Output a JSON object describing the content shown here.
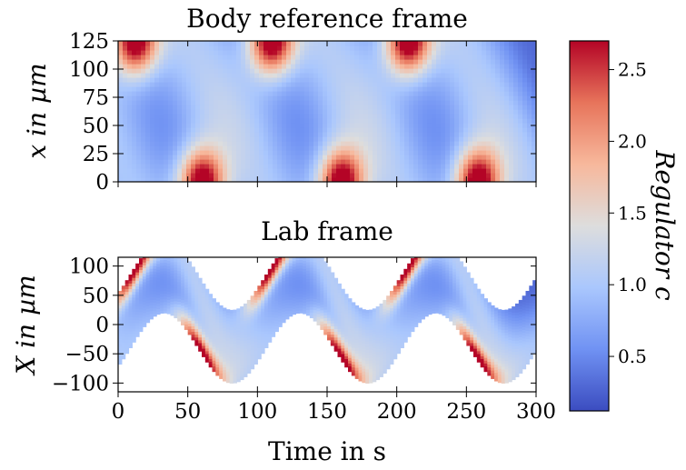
{
  "chart_data": [
    {
      "type": "heatmap",
      "title": "Body reference frame",
      "ylabel": "x in µm",
      "xlabel": "",
      "xlim": [
        0,
        300
      ],
      "ylim": [
        0,
        125
      ],
      "xticks": [
        0,
        50,
        100,
        150,
        200,
        250,
        300
      ],
      "yticks": [
        0,
        25,
        50,
        75,
        100,
        125
      ],
      "period_s": 97.5,
      "peaks": [
        {
          "t": 12,
          "x": 125,
          "c": 2.7
        },
        {
          "t": 60,
          "x": 0,
          "c": 2.7
        },
        {
          "t": 110,
          "x": 125,
          "c": 2.7
        },
        {
          "t": 160,
          "x": 0,
          "c": 2.7
        },
        {
          "t": 208,
          "x": 125,
          "c": 2.7
        },
        {
          "t": 258,
          "x": 0,
          "c": 2.7
        }
      ]
    },
    {
      "type": "heatmap",
      "title": "Lab frame",
      "ylabel": "X in µm",
      "xlabel": "Time in s",
      "xlim": [
        0,
        300
      ],
      "ylim": [
        -115,
        115
      ],
      "xticks": [
        0,
        50,
        100,
        150,
        200,
        250,
        300
      ],
      "xticklabels": [
        "0",
        "50",
        "100",
        "150",
        "200",
        "250",
        "300"
      ],
      "yticks": [
        100,
        50,
        0,
        -50,
        -100
      ],
      "yticklabels": [
        "100",
        "50",
        "0",
        "−50",
        "−100"
      ],
      "band_lower_min": -100,
      "band_lower_max": 20,
      "band_width": 125,
      "period_s": 97.5,
      "crest_times_s": [
        33,
        130,
        228
      ]
    }
  ],
  "colorbar": {
    "label": "Regulator c",
    "range": [
      0.12,
      2.7
    ],
    "ticks": [
      0.5,
      1.0,
      1.5,
      2.0,
      2.5
    ],
    "ticklabels": [
      "0.5",
      "1.0",
      "1.5",
      "2.0",
      "2.5"
    ],
    "colormap": "coolwarm",
    "stops": [
      "#3b4cc0",
      "#7092f3",
      "#aac7fd",
      "#dddddd",
      "#f7b89c",
      "#e7745b",
      "#b40426"
    ]
  }
}
